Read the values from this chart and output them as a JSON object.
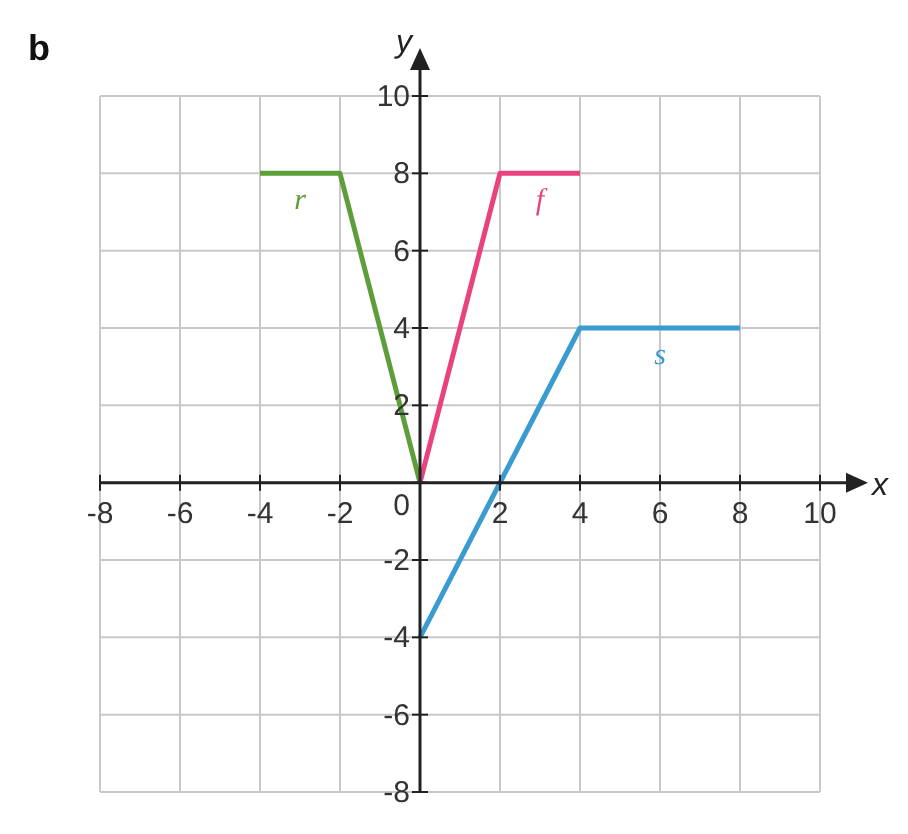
{
  "chart_data": {
    "type": "line",
    "xlabel": "x",
    "ylabel": "y",
    "annotations": [
      "b"
    ],
    "xlim": [
      -8,
      10
    ],
    "ylim": [
      -8,
      10
    ],
    "xticks": [
      -8,
      -6,
      -4,
      -2,
      0,
      2,
      4,
      6,
      8,
      10
    ],
    "yticks": [
      -8,
      -6,
      -4,
      -2,
      {
        "value": 0,
        "label": null
      },
      2,
      4,
      6,
      8,
      10
    ],
    "grid": true,
    "marker": "none",
    "line_style": "solid",
    "series": [
      {
        "name": "r",
        "color": "#5e9e3a",
        "x": [
          -4,
          -2,
          0
        ],
        "values": [
          8,
          8,
          0
        ]
      },
      {
        "name": "f",
        "color": "#e8437e",
        "x": [
          0,
          2,
          4
        ],
        "values": [
          0,
          8,
          8
        ]
      },
      {
        "name": "s",
        "color": "#3a9bd0",
        "x": [
          0,
          4,
          8
        ],
        "values": [
          -4,
          4,
          4
        ]
      }
    ]
  }
}
